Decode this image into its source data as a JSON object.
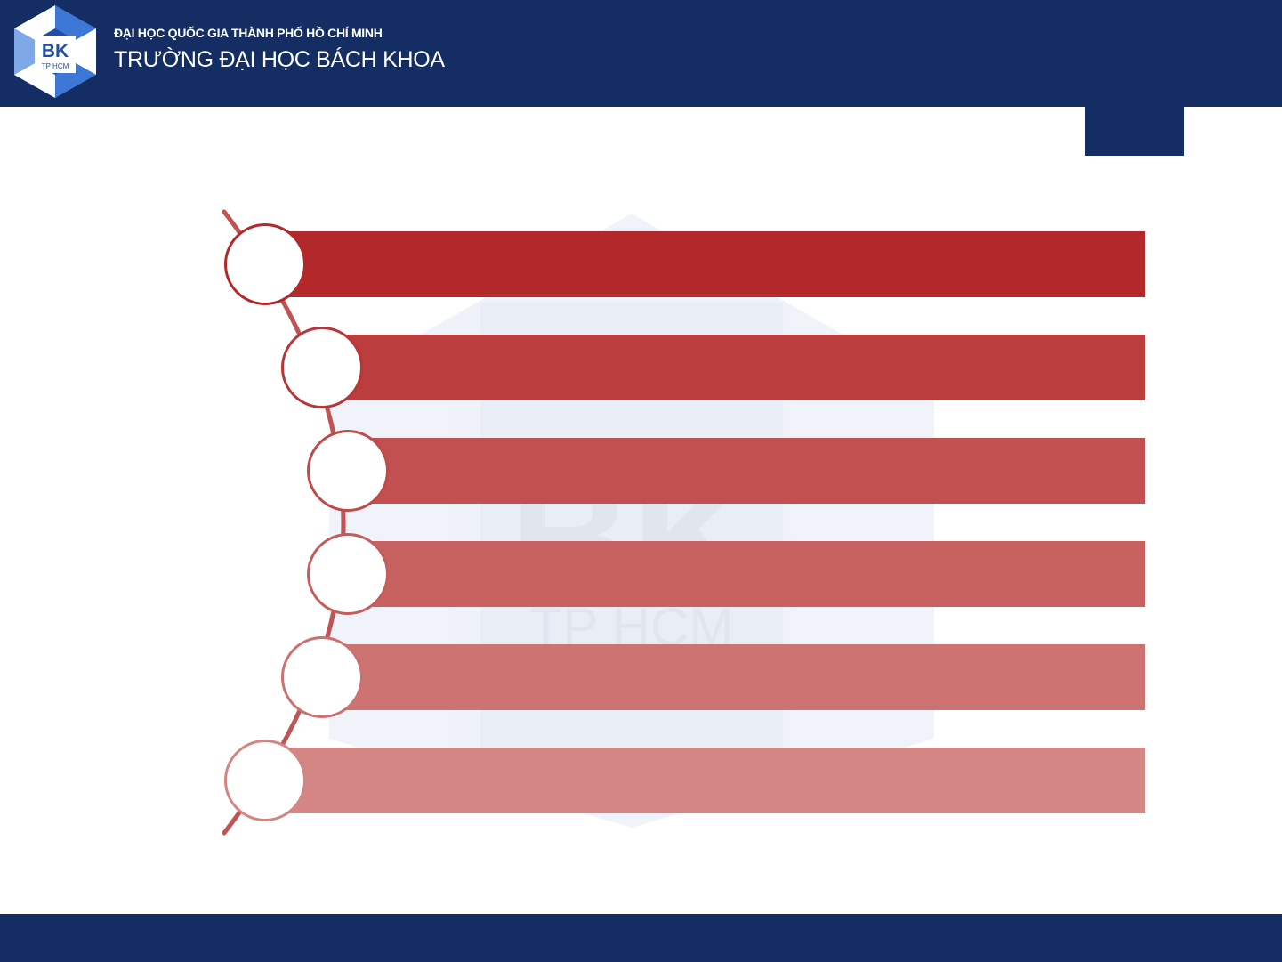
{
  "header": {
    "logo_text": "BK",
    "logo_subtext": "TP HCM",
    "university_line1": "ĐẠI HỌC QUỐC GIA THÀNH PHỐ HỒ CHÍ MINH",
    "university_line2": "TRƯỜNG ĐẠI HỌC BÁCH KHOA"
  },
  "colors": {
    "navy": "#142d63",
    "bar_colors": [
      "#b3282a",
      "#bb3d3e",
      "#c35051",
      "#c86260",
      "#cd7473",
      "#d48684"
    ],
    "node_border_colors": [
      "#b3282a",
      "#b83637",
      "#be4a4a",
      "#c45c5b",
      "#cb7170",
      "#d38584"
    ]
  },
  "watermark": {
    "text": "BK",
    "subtext": "TP HCM"
  },
  "diagram": {
    "items": [
      {
        "label": ""
      },
      {
        "label": ""
      },
      {
        "label": ""
      },
      {
        "label": ""
      },
      {
        "label": ""
      },
      {
        "label": ""
      }
    ]
  }
}
